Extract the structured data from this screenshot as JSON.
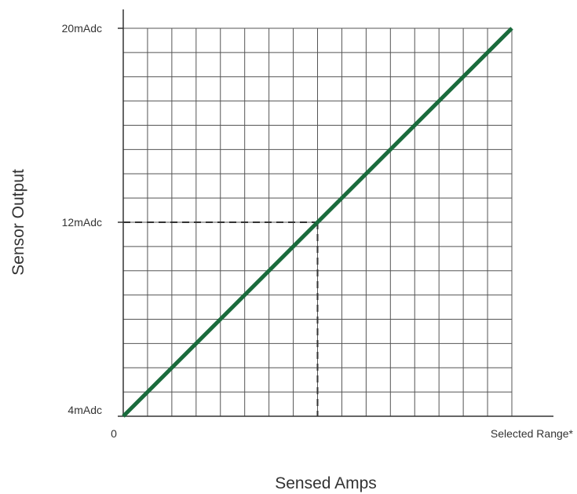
{
  "chart_data": {
    "type": "line",
    "title": "",
    "xlabel": "Sensed Amps",
    "ylabel": "Sensor Output",
    "x_ticks": [
      {
        "value": 0,
        "label": "0"
      },
      {
        "value": 1,
        "label": "Selected Range*"
      }
    ],
    "y_ticks": [
      {
        "value": 4,
        "label": "4mAdc"
      },
      {
        "value": 12,
        "label": "12mAdc"
      },
      {
        "value": 20,
        "label": "20mAdc"
      }
    ],
    "xlim": [
      0,
      1
    ],
    "ylim": [
      4,
      20
    ],
    "grid": true,
    "series": [
      {
        "x": [
          0,
          1
        ],
        "y": [
          4,
          20
        ],
        "color": "#1a6b3c"
      }
    ],
    "reference_point": {
      "x": 0.5,
      "y": 12
    },
    "colors": {
      "grid": "#555555",
      "axis": "#333333",
      "reference": "#333333"
    }
  }
}
